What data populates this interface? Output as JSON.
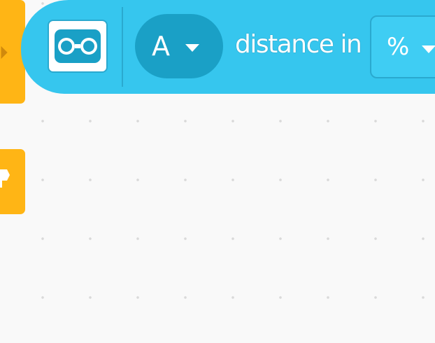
{
  "workspace": {
    "background_color": "#f9f9f9",
    "grid_dot_color": "#d9d9d9"
  },
  "yellow_blocks": {
    "color": "#ffb515"
  },
  "sensor_block": {
    "color": "#36c6ee",
    "icon": "distance-sensor-icon",
    "port_value": "A",
    "label": "distance in",
    "unit_value": "%"
  }
}
